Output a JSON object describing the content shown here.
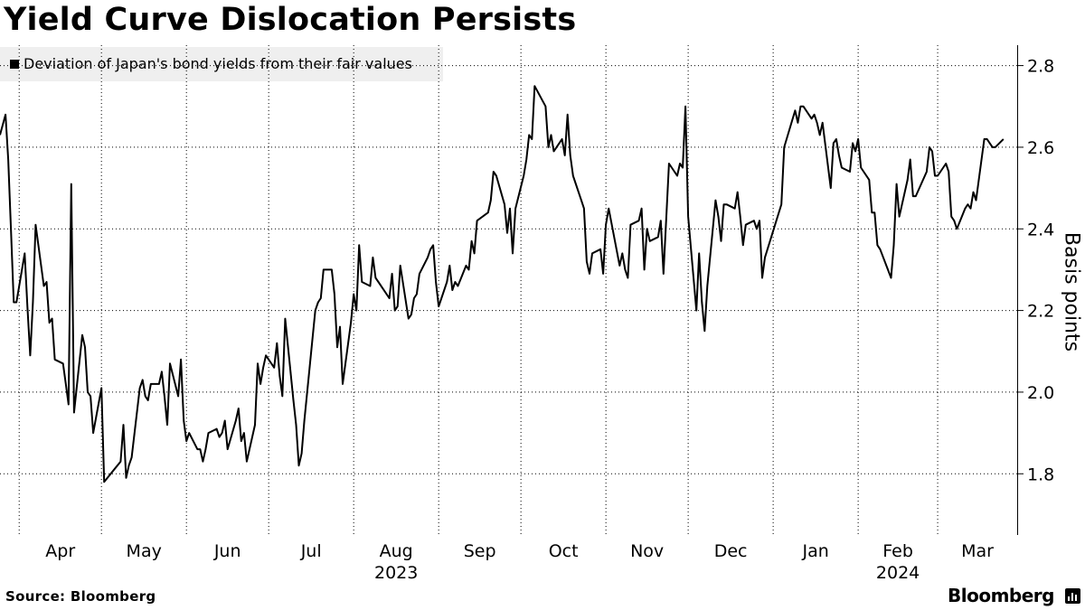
{
  "title": "Yield Curve Dislocation Persists",
  "source": "Source: Bloomberg",
  "brand": "Bloomberg",
  "brand_icon": "bloomberg-chart-icon",
  "colors": {
    "line": "#000000",
    "legend_bg": "#efefef",
    "grid": "#000000"
  },
  "chart_data": {
    "type": "line",
    "title": "Yield Curve Dislocation Persists",
    "ylabel": "Basis points",
    "ylim": [
      1.65,
      2.85
    ],
    "yticks": [
      1.8,
      2.0,
      2.2,
      2.4,
      2.6,
      2.8
    ],
    "ytick_labels": [
      "1.8",
      "2.0",
      "2.2",
      "2.4",
      "2.6",
      "2.8"
    ],
    "y_axis_position": "right",
    "grid": "horizontal dotted",
    "legend_position": "top-left",
    "xlim": [
      "2023-03-25",
      "2024-03-30"
    ],
    "x_month_ticks": [
      "2023-04-01",
      "2023-05-01",
      "2023-06-01",
      "2023-07-01",
      "2023-08-01",
      "2023-09-01",
      "2023-10-01",
      "2023-11-01",
      "2023-12-01",
      "2024-01-01",
      "2024-02-01",
      "2024-03-01"
    ],
    "x_month_labels": [
      "Apr",
      "May",
      "Jun",
      "Jul",
      "Aug",
      "Sep",
      "Oct",
      "Nov",
      "Dec",
      "Jan",
      "Feb",
      "Mar"
    ],
    "x_year_labels": [
      {
        "label": "2023",
        "date": "2023-08-01"
      },
      {
        "label": "2024",
        "date": "2024-02-01"
      }
    ],
    "series": [
      {
        "name": "Deviation of Japan's bond yields from their fair values",
        "x": [
          "2023-03-25",
          "2023-03-27",
          "2023-03-28",
          "2023-03-29",
          "2023-03-30",
          "2023-03-31",
          "2023-04-03",
          "2023-04-04",
          "2023-04-05",
          "2023-04-06",
          "2023-04-07",
          "2023-04-10",
          "2023-04-11",
          "2023-04-12",
          "2023-04-13",
          "2023-04-14",
          "2023-04-17",
          "2023-04-18",
          "2023-04-19",
          "2023-04-20",
          "2023-04-21",
          "2023-04-24",
          "2023-04-25",
          "2023-04-26",
          "2023-04-27",
          "2023-04-28",
          "2023-05-01",
          "2023-05-02",
          "2023-05-08",
          "2023-05-09",
          "2023-05-10",
          "2023-05-11",
          "2023-05-12",
          "2023-05-15",
          "2023-05-16",
          "2023-05-17",
          "2023-05-18",
          "2023-05-19",
          "2023-05-22",
          "2023-05-23",
          "2023-05-24",
          "2023-05-25",
          "2023-05-26",
          "2023-05-29",
          "2023-05-30",
          "2023-05-31",
          "2023-06-01",
          "2023-06-02",
          "2023-06-05",
          "2023-06-06",
          "2023-06-07",
          "2023-06-08",
          "2023-06-09",
          "2023-06-12",
          "2023-06-13",
          "2023-06-14",
          "2023-06-15",
          "2023-06-16",
          "2023-06-19",
          "2023-06-20",
          "2023-06-21",
          "2023-06-22",
          "2023-06-23",
          "2023-06-26",
          "2023-06-27",
          "2023-06-28",
          "2023-06-29",
          "2023-06-30",
          "2023-07-03",
          "2023-07-04",
          "2023-07-05",
          "2023-07-06",
          "2023-07-07",
          "2023-07-10",
          "2023-07-11",
          "2023-07-12",
          "2023-07-13",
          "2023-07-14",
          "2023-07-18",
          "2023-07-19",
          "2023-07-20",
          "2023-07-21",
          "2023-07-24",
          "2023-07-25",
          "2023-07-26",
          "2023-07-27",
          "2023-07-28",
          "2023-07-31",
          "2023-08-01",
          "2023-08-02",
          "2023-08-03",
          "2023-08-04",
          "2023-08-07",
          "2023-08-08",
          "2023-08-09",
          "2023-08-10",
          "2023-08-14",
          "2023-08-15",
          "2023-08-16",
          "2023-08-17",
          "2023-08-18",
          "2023-08-21",
          "2023-08-22",
          "2023-08-23",
          "2023-08-24",
          "2023-08-25",
          "2023-08-28",
          "2023-08-29",
          "2023-08-30",
          "2023-08-31",
          "2023-09-01",
          "2023-09-04",
          "2023-09-05",
          "2023-09-06",
          "2023-09-07",
          "2023-09-08",
          "2023-09-11",
          "2023-09-12",
          "2023-09-13",
          "2023-09-14",
          "2023-09-15",
          "2023-09-19",
          "2023-09-20",
          "2023-09-21",
          "2023-09-22",
          "2023-09-25",
          "2023-09-26",
          "2023-09-27",
          "2023-09-28",
          "2023-09-29",
          "2023-10-02",
          "2023-10-03",
          "2023-10-04",
          "2023-10-05",
          "2023-10-06",
          "2023-10-10",
          "2023-10-11",
          "2023-10-12",
          "2023-10-13",
          "2023-10-16",
          "2023-10-17",
          "2023-10-18",
          "2023-10-19",
          "2023-10-20",
          "2023-10-23",
          "2023-10-24",
          "2023-10-25",
          "2023-10-26",
          "2023-10-27",
          "2023-10-30",
          "2023-10-31",
          "2023-11-01",
          "2023-11-02",
          "2023-11-06",
          "2023-11-07",
          "2023-11-08",
          "2023-11-09",
          "2023-11-10",
          "2023-11-13",
          "2023-11-14",
          "2023-11-15",
          "2023-11-16",
          "2023-11-17",
          "2023-11-20",
          "2023-11-21",
          "2023-11-22",
          "2023-11-24",
          "2023-11-27",
          "2023-11-28",
          "2023-11-29",
          "2023-11-30",
          "2023-12-01",
          "2023-12-04",
          "2023-12-05",
          "2023-12-06",
          "2023-12-07",
          "2023-12-08",
          "2023-12-11",
          "2023-12-12",
          "2023-12-13",
          "2023-12-14",
          "2023-12-15",
          "2023-12-18",
          "2023-12-19",
          "2023-12-20",
          "2023-12-21",
          "2023-12-22",
          "2023-12-25",
          "2023-12-26",
          "2023-12-27",
          "2023-12-28",
          "2023-12-29",
          "2024-01-04",
          "2024-01-05",
          "2024-01-09",
          "2024-01-10",
          "2024-01-11",
          "2024-01-12",
          "2024-01-15",
          "2024-01-16",
          "2024-01-17",
          "2024-01-18",
          "2024-01-19",
          "2024-01-22",
          "2024-01-23",
          "2024-01-24",
          "2024-01-25",
          "2024-01-26",
          "2024-01-29",
          "2024-01-30",
          "2024-01-31",
          "2024-02-01",
          "2024-02-02",
          "2024-02-05",
          "2024-02-06",
          "2024-02-07",
          "2024-02-08",
          "2024-02-09",
          "2024-02-13",
          "2024-02-14",
          "2024-02-15",
          "2024-02-16",
          "2024-02-19",
          "2024-02-20",
          "2024-02-21",
          "2024-02-22",
          "2024-02-26",
          "2024-02-27",
          "2024-02-28",
          "2024-02-29",
          "2024-03-01",
          "2024-03-04",
          "2024-03-05",
          "2024-03-06",
          "2024-03-07",
          "2024-03-08",
          "2024-03-11",
          "2024-03-12",
          "2024-03-13",
          "2024-03-14",
          "2024-03-15",
          "2024-03-18",
          "2024-03-19",
          "2024-03-21",
          "2024-03-22",
          "2024-03-25"
        ],
        "y": [
          2.63,
          2.68,
          2.57,
          2.4,
          2.22,
          2.22,
          2.34,
          2.21,
          2.09,
          2.22,
          2.41,
          2.26,
          2.27,
          2.17,
          2.18,
          2.08,
          2.07,
          2.02,
          1.97,
          2.51,
          1.95,
          2.14,
          2.11,
          2.0,
          1.99,
          1.9,
          2.01,
          1.78,
          1.83,
          1.92,
          1.79,
          1.82,
          1.84,
          2.01,
          2.03,
          1.99,
          1.98,
          2.02,
          2.02,
          2.05,
          1.99,
          1.92,
          2.07,
          1.99,
          2.08,
          1.93,
          1.88,
          1.9,
          1.86,
          1.86,
          1.83,
          1.86,
          1.9,
          1.91,
          1.89,
          1.9,
          1.93,
          1.86,
          1.93,
          1.96,
          1.88,
          1.9,
          1.83,
          1.92,
          2.07,
          2.02,
          2.06,
          2.09,
          2.06,
          2.12,
          2.04,
          1.99,
          2.18,
          1.98,
          1.92,
          1.82,
          1.85,
          1.93,
          2.2,
          2.22,
          2.23,
          2.3,
          2.3,
          2.24,
          2.11,
          2.16,
          2.02,
          2.17,
          2.24,
          2.2,
          2.36,
          2.27,
          2.26,
          2.33,
          2.28,
          2.27,
          2.23,
          2.29,
          2.2,
          2.21,
          2.31,
          2.18,
          2.19,
          2.23,
          2.24,
          2.29,
          2.33,
          2.35,
          2.36,
          2.27,
          2.21,
          2.27,
          2.31,
          2.25,
          2.27,
          2.26,
          2.31,
          2.3,
          2.37,
          2.34,
          2.42,
          2.44,
          2.47,
          2.54,
          2.53,
          2.46,
          2.39,
          2.45,
          2.34,
          2.45,
          2.53,
          2.57,
          2.63,
          2.62,
          2.75,
          2.7,
          2.6,
          2.63,
          2.59,
          2.62,
          2.58,
          2.68,
          2.58,
          2.53,
          2.47,
          2.45,
          2.32,
          2.29,
          2.34,
          2.35,
          2.29,
          2.41,
          2.45,
          2.31,
          2.34,
          2.3,
          2.28,
          2.41,
          2.42,
          2.45,
          2.3,
          2.4,
          2.37,
          2.38,
          2.42,
          2.29,
          2.56,
          2.53,
          2.56,
          2.55,
          2.7,
          2.43,
          2.2,
          2.34,
          2.22,
          2.15,
          2.26,
          2.47,
          2.43,
          2.37,
          2.46,
          2.46,
          2.45,
          2.49,
          2.43,
          2.36,
          2.41,
          2.42,
          2.4,
          2.42,
          2.28,
          2.33,
          2.46,
          2.6,
          2.69,
          2.66,
          2.7,
          2.7,
          2.67,
          2.68,
          2.66,
          2.63,
          2.66,
          2.5,
          2.61,
          2.62,
          2.58,
          2.55,
          2.54,
          2.61,
          2.59,
          2.62,
          2.55,
          2.52,
          2.44,
          2.44,
          2.36,
          2.35,
          2.28,
          2.36,
          2.51,
          2.43,
          2.52,
          2.57,
          2.48,
          2.48,
          2.54,
          2.6,
          2.59,
          2.53,
          2.53,
          2.56,
          2.54,
          2.43,
          2.42,
          2.4,
          2.45,
          2.46,
          2.45,
          2.49,
          2.47,
          2.62,
          2.62,
          2.6,
          2.6,
          2.62
        ]
      }
    ]
  }
}
